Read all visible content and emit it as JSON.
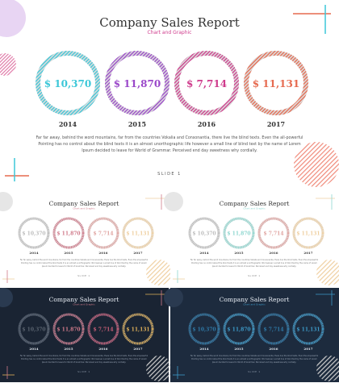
{
  "title": "Company Sales Report",
  "subtitle": "Chart and Graphic",
  "paragraph": [
    "Far far away, behind the word mountains, far from the countries Vokalia and Consonantia, there live the blind texts. Even the all-powerful",
    "Pointing has no control about the blind texts it is an almost unorthographic life however a small line of blind text by the name of Lorem",
    "Ipsum decided to leave for World of Grammar. Perceived end day sweetness why cordially."
  ],
  "footer": "SLIDE 1",
  "years": [
    {
      "value": "$ 10,370",
      "year": "2014"
    },
    {
      "value": "$ 11,870",
      "year": "2015"
    },
    {
      "value": "$ 7,714",
      "year": "2016"
    },
    {
      "value": "$ 11,131",
      "year": "2017"
    }
  ],
  "colors": {
    "c2014": "#3cc7d8",
    "c2015": "#9a47c9",
    "c2016": "#cf3b8c",
    "c2017": "#e66a4f",
    "ringTrack": "#dcdcdc",
    "navy": "#1a2433",
    "navy2": "#1d2b3e",
    "lightTeal": "#8fd7d0",
    "gold": "#e2b25a"
  },
  "variants": [
    {
      "name": "gray-theme",
      "dark": false,
      "ringColors": [
        "#bdbdbd",
        "#d07a8a",
        "#e0a3a0",
        "#efcfa0"
      ]
    },
    {
      "name": "pastel-theme",
      "dark": false,
      "ringColors": [
        "#bdbdbd",
        "#8fd7d0",
        "#e0a3a0",
        "#efcfa0"
      ]
    },
    {
      "name": "dark-theme",
      "dark": true,
      "ringColors": [
        "#5b6470",
        "#d07a8a",
        "#c95f77",
        "#e2b25a"
      ]
    },
    {
      "name": "dark-blue-theme",
      "dark": true,
      "ringColors": [
        "#2f7aa8",
        "#3d9ac8",
        "#2f7aa8",
        "#3d9ac8"
      ]
    }
  ]
}
